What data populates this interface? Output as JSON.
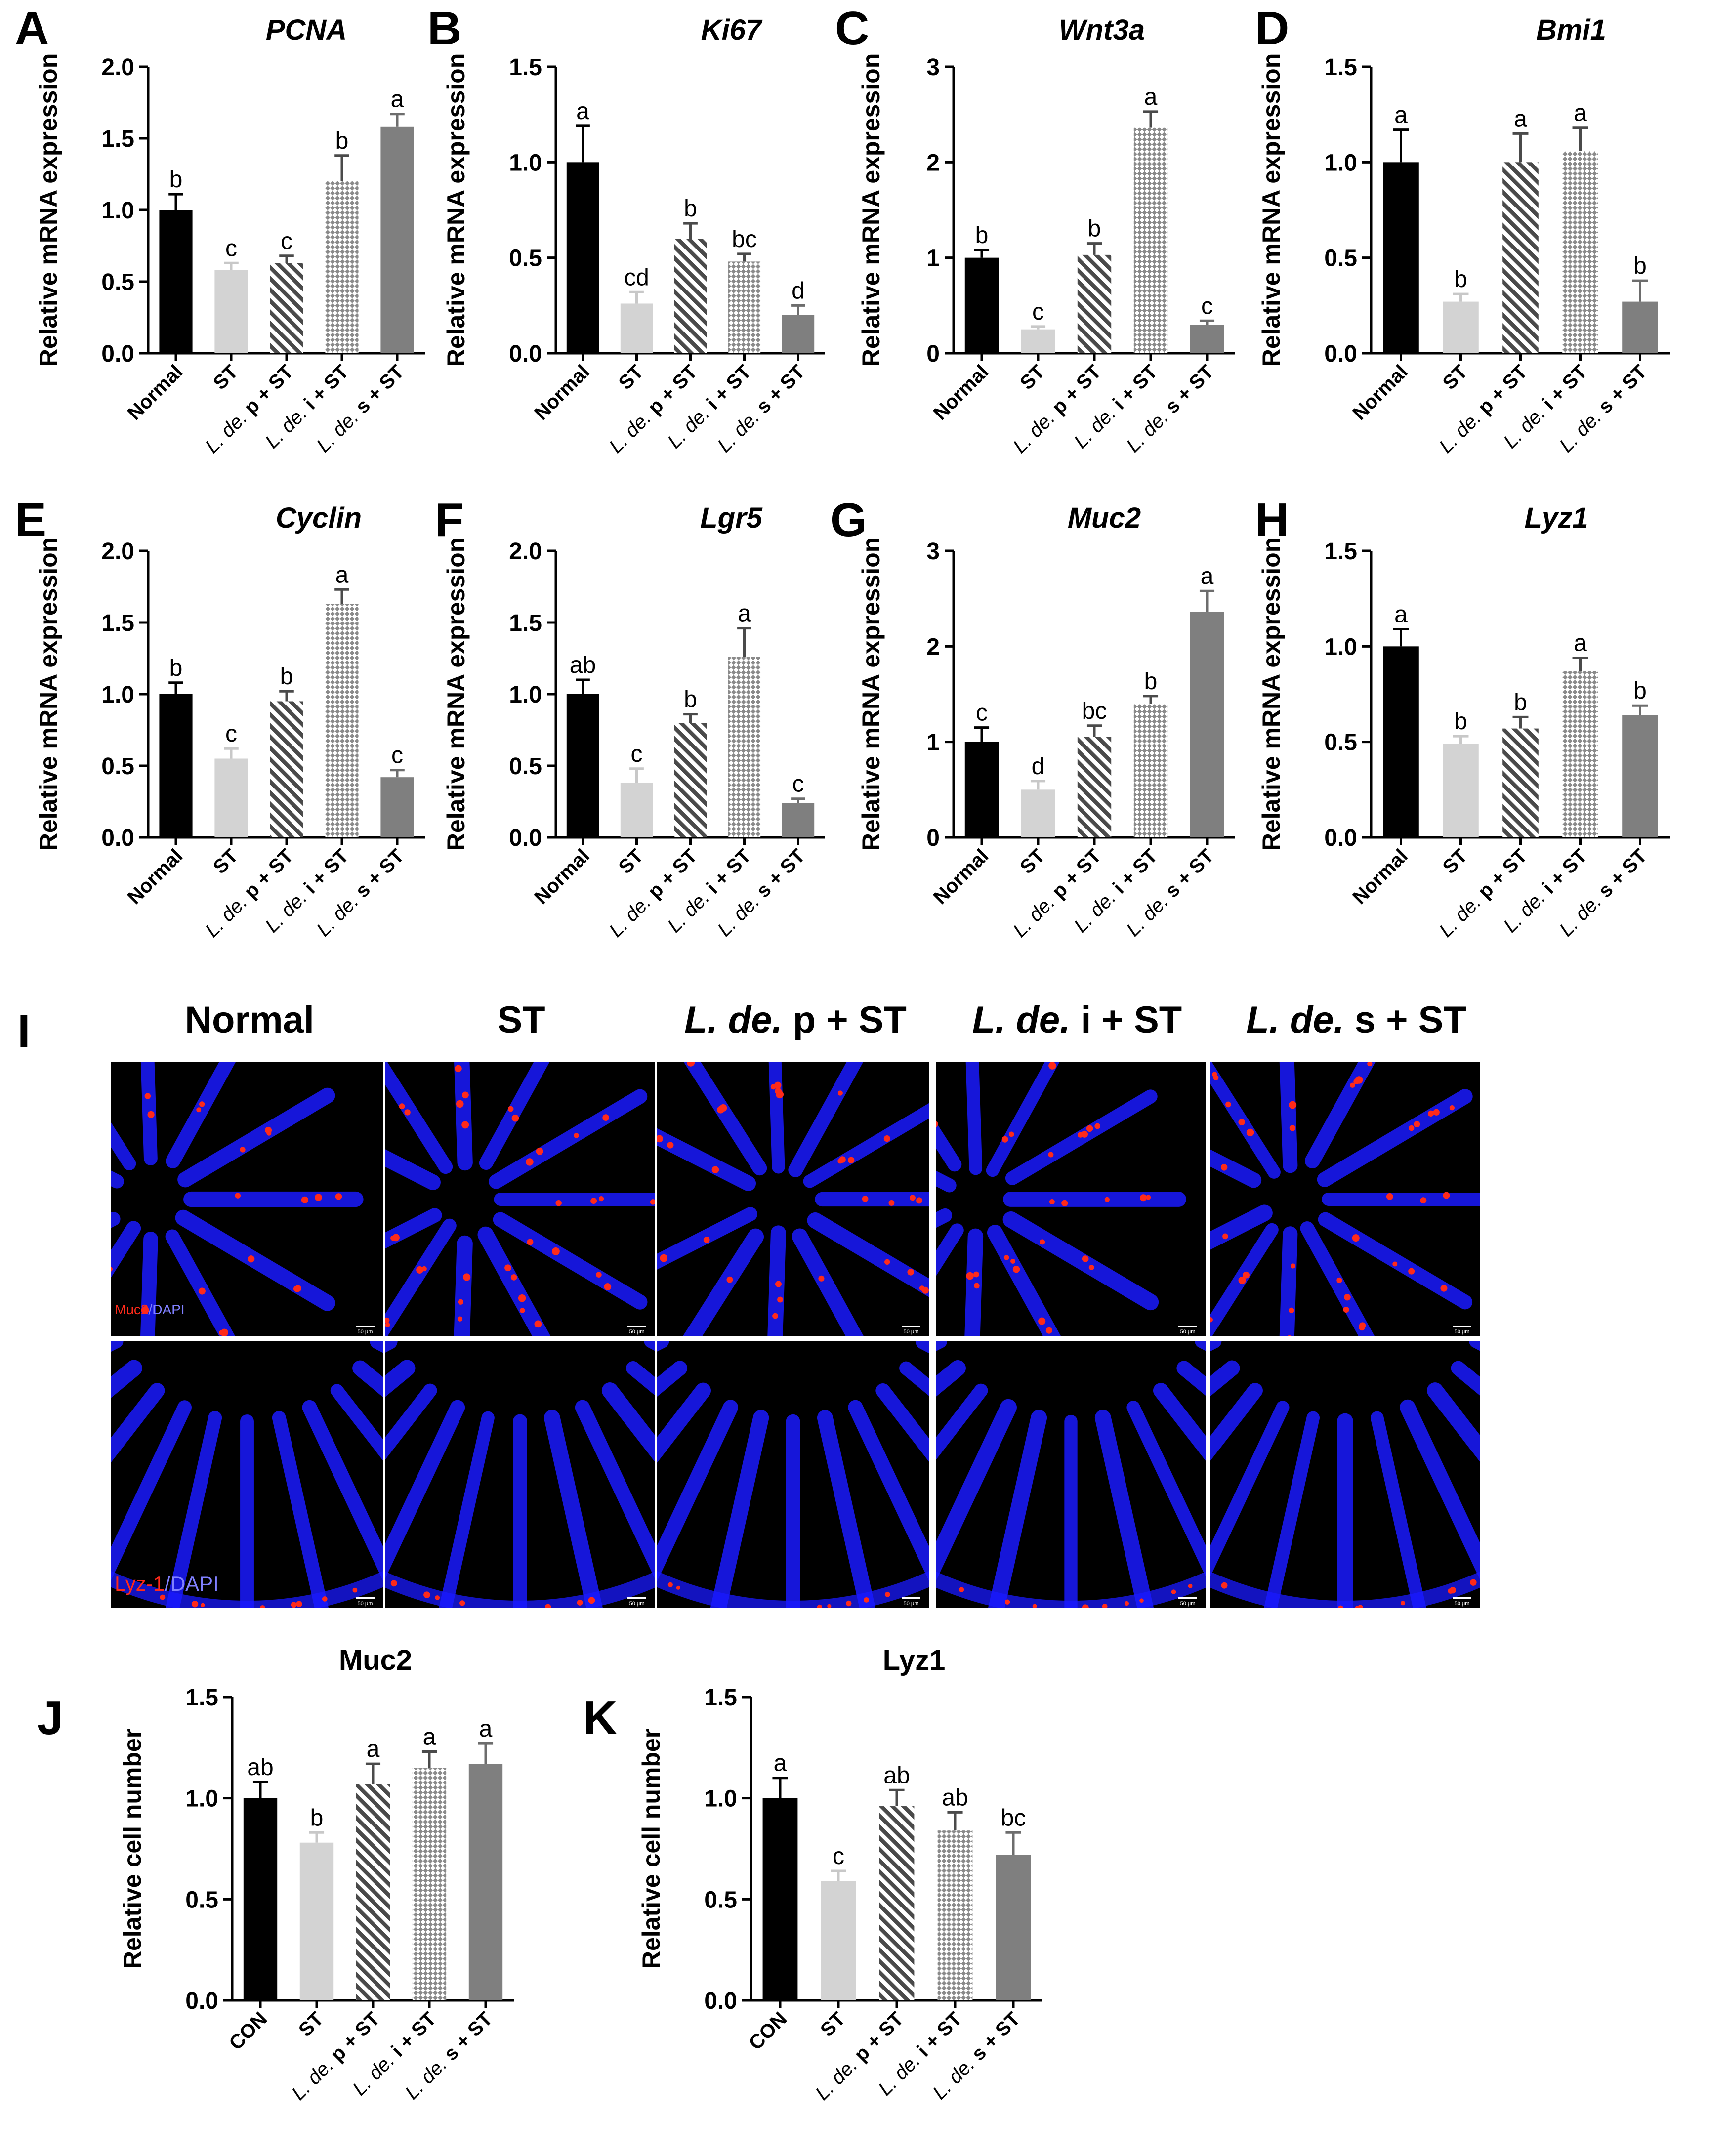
{
  "figure": {
    "panel_i": {
      "letter": "I",
      "columns": [
        "Normal",
        "ST",
        "L. de. p + ST",
        "L. de. i + ST",
        "L. de. s + ST"
      ],
      "column_labels": [
        {
          "italic": "",
          "rest": "Normal"
        },
        {
          "italic": "",
          "rest": "ST"
        },
        {
          "italic": "L. de.",
          "rest": " p + ST"
        },
        {
          "italic": "L. de.",
          "rest": " i + ST"
        },
        {
          "italic": "L. de.",
          "rest": " s + ST"
        }
      ],
      "row_labels": [
        {
          "marker": "Muc2",
          "sep": "/",
          "stain": "DAPI"
        },
        {
          "marker": "Lyz-1",
          "sep": "/",
          "stain": "DAPI"
        }
      ],
      "scale_bar": "50 μm",
      "colors": {
        "background": "#000000",
        "dapi": "#1a1aff",
        "marker": "#ff2a1a"
      }
    }
  },
  "chart_data": [
    {
      "letter": "A",
      "type": "bar",
      "title": "PCNA",
      "title_italic": true,
      "ylabel": "Relative mRNA expression",
      "ylim": [
        0,
        2.0
      ],
      "yticks": [
        "0.0",
        "0.5",
        "1.0",
        "1.5",
        "2.0"
      ],
      "categories": [
        "Normal",
        "ST",
        "L. de. p + ST",
        "L. de. i + ST",
        "L. de. s + ST"
      ],
      "values": [
        1.0,
        0.58,
        0.63,
        1.2,
        1.58
      ],
      "errors": [
        0.11,
        0.05,
        0.05,
        0.18,
        0.09
      ],
      "letters": [
        "b",
        "c",
        "c",
        "b",
        "a"
      ]
    },
    {
      "letter": "B",
      "type": "bar",
      "title": "Ki67",
      "title_italic": true,
      "ylabel": "Relative mRNA expression",
      "ylim": [
        0,
        1.5
      ],
      "yticks": [
        "0.0",
        "0.5",
        "1.0",
        "1.5"
      ],
      "categories": [
        "Normal",
        "ST",
        "L. de. p + ST",
        "L. de. i + ST",
        "L. de. s + ST"
      ],
      "values": [
        1.0,
        0.26,
        0.6,
        0.48,
        0.2
      ],
      "errors": [
        0.19,
        0.06,
        0.08,
        0.04,
        0.05
      ],
      "letters": [
        "a",
        "cd",
        "b",
        "bc",
        "d"
      ]
    },
    {
      "letter": "C",
      "type": "bar",
      "title": "Wnt3a",
      "title_italic": true,
      "ylabel": "Relative mRNA expression",
      "ylim": [
        0,
        3
      ],
      "yticks": [
        "0",
        "1",
        "2",
        "3"
      ],
      "categories": [
        "Normal",
        "ST",
        "L. de. p + ST",
        "L. de. i + ST",
        "L. de. s + ST"
      ],
      "values": [
        1.0,
        0.25,
        1.03,
        2.36,
        0.3
      ],
      "errors": [
        0.08,
        0.03,
        0.12,
        0.17,
        0.04
      ],
      "letters": [
        "b",
        "c",
        "b",
        "a",
        "c"
      ]
    },
    {
      "letter": "D",
      "type": "bar",
      "title": "Bmi1",
      "title_italic": true,
      "ylabel": "Relative mRNA expression",
      "ylim": [
        0,
        1.5
      ],
      "yticks": [
        "0.0",
        "0.5",
        "1.0",
        "1.5"
      ],
      "categories": [
        "Normal",
        "ST",
        "L. de. p + ST",
        "L. de. i + ST",
        "L. de. s + ST"
      ],
      "values": [
        1.0,
        0.27,
        1.0,
        1.06,
        0.27
      ],
      "errors": [
        0.17,
        0.04,
        0.15,
        0.12,
        0.11
      ],
      "letters": [
        "a",
        "b",
        "a",
        "a",
        "b"
      ]
    },
    {
      "letter": "E",
      "type": "bar",
      "title": "Cyclin",
      "title_italic": true,
      "ylabel": "Relative mRNA expression",
      "ylim": [
        0,
        2.0
      ],
      "yticks": [
        "0.0",
        "0.5",
        "1.0",
        "1.5",
        "2.0"
      ],
      "categories": [
        "Normal",
        "ST",
        "L. de. p + ST",
        "L. de. i + ST",
        "L. de. s + ST"
      ],
      "values": [
        1.0,
        0.55,
        0.95,
        1.63,
        0.42
      ],
      "errors": [
        0.08,
        0.07,
        0.07,
        0.1,
        0.05
      ],
      "letters": [
        "b",
        "c",
        "b",
        "a",
        "c"
      ]
    },
    {
      "letter": "F",
      "type": "bar",
      "title": "Lgr5",
      "title_italic": true,
      "ylabel": "Relative mRNA expression",
      "ylim": [
        0,
        2.0
      ],
      "yticks": [
        "0.0",
        "0.5",
        "1.0",
        "1.5",
        "2.0"
      ],
      "categories": [
        "Normal",
        "ST",
        "L. de. p + ST",
        "L. de. i + ST",
        "L. de. s + ST"
      ],
      "values": [
        1.0,
        0.38,
        0.8,
        1.26,
        0.24
      ],
      "errors": [
        0.1,
        0.1,
        0.06,
        0.2,
        0.03
      ],
      "letters": [
        "ab",
        "c",
        "b",
        "a",
        "c"
      ]
    },
    {
      "letter": "G",
      "type": "bar",
      "title": "Muc2",
      "title_italic": true,
      "ylabel": "Relative mRNA expression",
      "ylim": [
        0,
        3
      ],
      "yticks": [
        "0",
        "1",
        "2",
        "3"
      ],
      "categories": [
        "Normal",
        "ST",
        "L. de. p + ST",
        "L. de. i + ST",
        "L. de. s + ST"
      ],
      "values": [
        1.0,
        0.5,
        1.05,
        1.4,
        2.36
      ],
      "errors": [
        0.15,
        0.09,
        0.12,
        0.08,
        0.22
      ],
      "letters": [
        "c",
        "d",
        "bc",
        "b",
        "a"
      ]
    },
    {
      "letter": "H",
      "type": "bar",
      "title": "Lyz1",
      "title_italic": true,
      "ylabel": "Relative mRNA expression",
      "ylim": [
        0,
        1.5
      ],
      "yticks": [
        "0.0",
        "0.5",
        "1.0",
        "1.5"
      ],
      "categories": [
        "Normal",
        "ST",
        "L. de. p + ST",
        "L. de. i + ST",
        "L. de. s + ST"
      ],
      "values": [
        1.0,
        0.49,
        0.57,
        0.87,
        0.64
      ],
      "errors": [
        0.09,
        0.04,
        0.06,
        0.07,
        0.05
      ],
      "letters": [
        "a",
        "b",
        "b",
        "a",
        "b"
      ]
    },
    {
      "letter": "J",
      "type": "bar",
      "title": "Muc2",
      "title_italic": false,
      "ylabel": "Relative cell number",
      "ylim": [
        0,
        1.5
      ],
      "yticks": [
        "0.0",
        "0.5",
        "1.0",
        "1.5"
      ],
      "categories": [
        "CON",
        "ST",
        "L. de. p + ST",
        "L. de. i + ST",
        "L. de. s + ST"
      ],
      "values": [
        1.0,
        0.78,
        1.07,
        1.15,
        1.17
      ],
      "errors": [
        0.08,
        0.05,
        0.1,
        0.08,
        0.1
      ],
      "letters": [
        "ab",
        "b",
        "a",
        "a",
        "a"
      ]
    },
    {
      "letter": "K",
      "type": "bar",
      "title": "Lyz1",
      "title_italic": false,
      "ylabel": "Relative cell number",
      "ylim": [
        0,
        1.5
      ],
      "yticks": [
        "0.0",
        "0.5",
        "1.0",
        "1.5"
      ],
      "categories": [
        "CON",
        "ST",
        "L. de. p + ST",
        "L. de. i + ST",
        "L. de. s + ST"
      ],
      "values": [
        1.0,
        0.59,
        0.96,
        0.84,
        0.72
      ],
      "errors": [
        0.1,
        0.05,
        0.08,
        0.09,
        0.11
      ],
      "letters": [
        "a",
        "c",
        "ab",
        "ab",
        "bc"
      ]
    }
  ]
}
